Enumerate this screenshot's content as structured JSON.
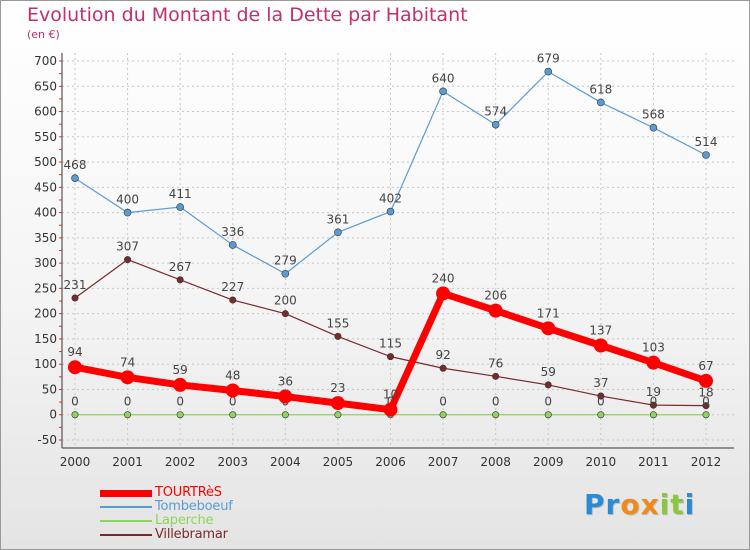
{
  "chart_data": {
    "type": "line",
    "title": "Evolution du Montant de la Dette par Habitant",
    "subtitle": "(en €)",
    "xlabel": "",
    "ylabel": "",
    "x": [
      "2000",
      "2001",
      "2002",
      "2003",
      "2004",
      "2005",
      "2006",
      "2007",
      "2008",
      "2009",
      "2010",
      "2011",
      "2012"
    ],
    "ylim": [
      -50,
      700
    ],
    "yticks": [
      -50,
      0,
      50,
      100,
      150,
      200,
      250,
      300,
      350,
      400,
      450,
      500,
      550,
      600,
      650,
      700
    ],
    "grid": true,
    "legend_position": "bottom-left",
    "series": [
      {
        "name": "Tombeboeuf",
        "color": "#5a9bd4",
        "values": [
          468,
          400,
          411,
          336,
          279,
          361,
          402,
          640,
          574,
          679,
          618,
          568,
          514
        ]
      },
      {
        "name": "Villebramar",
        "color": "#7a2a2a",
        "values": [
          231,
          307,
          267,
          227,
          200,
          155,
          115,
          92,
          76,
          59,
          37,
          19,
          18
        ]
      },
      {
        "name": "Laperche",
        "color": "#8fd45a",
        "values": [
          0,
          0,
          0,
          0,
          0,
          0,
          0,
          0,
          0,
          0,
          0,
          0,
          0
        ]
      },
      {
        "name": "TOURTRèS",
        "color": "#ff0000",
        "values": [
          94,
          74,
          59,
          48,
          36,
          23,
          10,
          240,
          206,
          171,
          137,
          103,
          67
        ]
      }
    ],
    "legend_order": [
      "TOURTRèS",
      "Tombeboeuf",
      "Laperche",
      "Villebramar"
    ]
  },
  "logo": {
    "letters": [
      {
        "ch": "P",
        "color": "#2a8ad4"
      },
      {
        "ch": "r",
        "color": "#2a8ad4"
      },
      {
        "ch": "o",
        "color": "#f08a1c"
      },
      {
        "ch": "x",
        "color": "#f08a1c"
      },
      {
        "ch": "i",
        "color": "#8cc63f"
      },
      {
        "ch": "t",
        "color": "#8cc63f"
      },
      {
        "ch": "i",
        "color": "#2a8ad4"
      }
    ]
  }
}
